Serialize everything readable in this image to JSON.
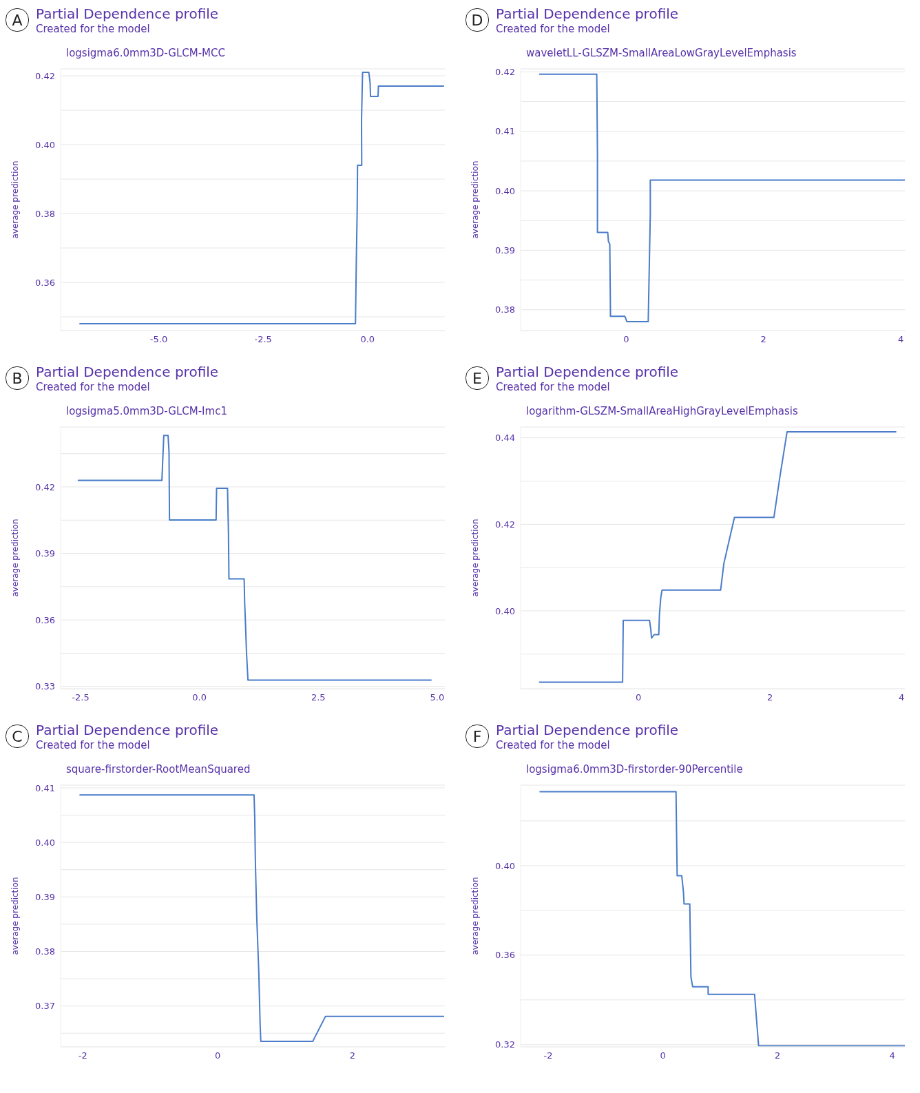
{
  "chart_data": [
    {
      "type": "line",
      "title": "Partial Dependence profile",
      "subtitle": "Created for the model",
      "ylabel": "average prediction",
      "annotations": [
        "A",
        "logsigma6.0mm3D-GLCM-MCC"
      ],
      "color": "#4a7cc9",
      "grid": "y",
      "x": [
        -6.9,
        -0.29,
        -0.28,
        -0.27,
        -0.25,
        -0.24,
        -0.14,
        -0.145,
        -0.12,
        0.03,
        0.06,
        0.07,
        0.25,
        0.26,
        1.83
      ],
      "values": [
        0.348,
        0.348,
        0.357,
        0.366,
        0.38,
        0.394,
        0.394,
        0.407,
        0.421,
        0.421,
        0.418,
        0.414,
        0.414,
        0.417,
        0.417
      ],
      "xlim": [
        -7.35,
        1.85
      ],
      "xticks": [
        {
          "value": -5,
          "label": "-5.0"
        },
        {
          "value": -2.5,
          "label": "-2.5"
        },
        {
          "value": 0,
          "label": "0.0"
        }
      ],
      "ylim": [
        0.346,
        0.422
      ],
      "yticks": [
        {
          "value": 0.35,
          "label": null
        },
        0.36,
        {
          "value": 0.37,
          "label": null
        },
        0.38,
        {
          "value": 0.39,
          "label": null
        },
        {
          "value": 0.4,
          "label": "0.40"
        },
        {
          "value": 0.41,
          "label": null
        },
        0.42
      ]
    },
    {
      "type": "line",
      "title": "Partial Dependence profile",
      "subtitle": "Created for the model",
      "ylabel": "average prediction",
      "annotations": [
        "D",
        "waveletLL-GLSZM-SmallAreaLowGrayLevelEmphasis"
      ],
      "color": "#4a7cc9",
      "grid": "y",
      "x": [
        -1.27,
        -0.43,
        -0.42,
        -0.42,
        -0.27,
        -0.26,
        -0.24,
        -0.23,
        -0.02,
        0.01,
        0.32,
        0.33,
        0.34,
        0.35,
        0.35,
        4.06
      ],
      "values": [
        0.4196,
        0.4196,
        0.4063,
        0.393,
        0.393,
        0.3915,
        0.391,
        0.3789,
        0.3789,
        0.378,
        0.378,
        0.384,
        0.39,
        0.396,
        0.4018,
        0.4018
      ],
      "xlim": [
        -1.54,
        4.06
      ],
      "xticks": [
        0,
        2,
        4
      ],
      "ylim": [
        0.3765,
        0.4205
      ],
      "yticks": [
        0.38,
        {
          "value": 0.385,
          "label": null
        },
        0.39,
        {
          "value": 0.395,
          "label": null
        },
        {
          "value": 0.4,
          "label": "0.40"
        },
        {
          "value": 0.405,
          "label": null
        },
        0.41,
        {
          "value": 0.415,
          "label": null
        },
        0.42
      ]
    },
    {
      "type": "line",
      "title": "Partial Dependence profile",
      "subtitle": "Created for the model",
      "ylabel": "average prediction",
      "annotations": [
        "B",
        "logsigma5.0mm3D-GLCM-Imc1"
      ],
      "color": "#4a7cc9",
      "grid": "y",
      "x": [
        -2.56,
        -0.79,
        -0.75,
        -0.66,
        -0.64,
        -0.63,
        0.35,
        0.36,
        0.59,
        0.61,
        0.62,
        0.94,
        0.95,
        0.97,
        0.99,
        1.02,
        4.88
      ],
      "values": [
        0.4229,
        0.4229,
        0.4432,
        0.4432,
        0.4357,
        0.4051,
        0.4051,
        0.4194,
        0.4194,
        0.399,
        0.3785,
        0.3785,
        0.3681,
        0.357,
        0.345,
        0.3329,
        0.3329
      ],
      "xlim": [
        -2.92,
        5.16
      ],
      "xticks": [
        {
          "value": -2.5,
          "label": "-2.5"
        },
        {
          "value": 0,
          "label": "0.0"
        },
        {
          "value": 2.5,
          "label": "2.5"
        },
        {
          "value": 5,
          "label": "5.0"
        }
      ],
      "ylim": [
        0.329,
        0.447
      ],
      "yticks": [
        0.33,
        {
          "value": 0.345,
          "label": null
        },
        0.36,
        {
          "value": 0.375,
          "label": null
        },
        0.39,
        {
          "value": 0.405,
          "label": null
        },
        0.42,
        {
          "value": 0.435,
          "label": null
        }
      ]
    },
    {
      "type": "line",
      "title": "Partial Dependence profile",
      "subtitle": "Created for the model",
      "ylabel": "average prediction",
      "annotations": [
        "E",
        "logarithm-GLSZM-SmallAreaHighGrayLevelEmphasis"
      ],
      "color": "#4a7cc9",
      "grid": "y",
      "x": [
        -1.51,
        -0.24,
        -0.23,
        0.17,
        0.19,
        0.2,
        0.24,
        0.31,
        0.32,
        0.34,
        0.36,
        1.25,
        1.3,
        1.46,
        2.06,
        2.15,
        2.26,
        3.92
      ],
      "values": [
        0.3835,
        0.3835,
        0.3978,
        0.3978,
        0.3955,
        0.3937,
        0.3945,
        0.3945,
        0.3991,
        0.403,
        0.4048,
        0.4048,
        0.411,
        0.4216,
        0.4216,
        0.4309,
        0.4414,
        0.4414
      ],
      "xlim": [
        -1.79,
        4.05
      ],
      "xticks": [
        0,
        2,
        4
      ],
      "ylim": [
        0.382,
        0.4425
      ],
      "yticks": [
        {
          "value": 0.39,
          "label": null
        },
        {
          "value": 0.4,
          "label": "0.40"
        },
        {
          "value": 0.41,
          "label": null
        },
        0.42,
        {
          "value": 0.43,
          "label": null
        },
        0.44
      ]
    },
    {
      "type": "line",
      "title": "Partial Dependence profile",
      "subtitle": "Created for the model",
      "ylabel": "average prediction",
      "annotations": [
        "C",
        "square-firstorder-RootMeanSquared"
      ],
      "color": "#4a7cc9",
      "grid": "y",
      "x": [
        -2.05,
        0.54,
        0.55,
        0.56,
        0.58,
        0.61,
        0.63,
        0.64,
        1.41,
        1.6,
        3.36
      ],
      "values": [
        0.4087,
        0.4087,
        0.4045,
        0.3962,
        0.3862,
        0.3762,
        0.3665,
        0.3635,
        0.3635,
        0.3681,
        0.3681
      ],
      "xlim": [
        -2.33,
        3.37
      ],
      "xticks": [
        -2,
        0,
        2
      ],
      "ylim": [
        0.3625,
        0.4105
      ],
      "yticks": [
        {
          "value": 0.365,
          "label": null
        },
        0.37,
        {
          "value": 0.375,
          "label": null
        },
        0.38,
        {
          "value": 0.385,
          "label": null
        },
        0.39,
        {
          "value": 0.395,
          "label": null
        },
        {
          "value": 0.4,
          "label": "0.40"
        },
        {
          "value": 0.405,
          "label": null
        },
        0.41
      ]
    },
    {
      "type": "line",
      "title": "Partial Dependence profile",
      "subtitle": "Created for the model",
      "ylabel": "average prediction",
      "annotations": [
        "F",
        "logsigma6.0mm3D-firstorder-90Percentile"
      ],
      "color": "#4a7cc9",
      "grid": "y",
      "x": [
        -2.15,
        0.23,
        0.24,
        0.25,
        0.33,
        0.36,
        0.37,
        0.47,
        0.48,
        0.49,
        0.52,
        0.79,
        0.79,
        1.6,
        1.62,
        1.67,
        4.22
      ],
      "values": [
        0.4331,
        0.4331,
        0.4139,
        0.3955,
        0.3955,
        0.3881,
        0.3829,
        0.3829,
        0.3663,
        0.3502,
        0.3459,
        0.3459,
        0.3425,
        0.3425,
        0.3358,
        0.3195,
        0.3195
      ],
      "xlim": [
        -2.48,
        4.22
      ],
      "xticks": [
        -2,
        0,
        2,
        4
      ],
      "ylim": [
        0.319,
        0.436
      ],
      "yticks": [
        0.32,
        {
          "value": 0.34,
          "label": null
        },
        0.36,
        {
          "value": 0.38,
          "label": null
        },
        {
          "value": 0.4,
          "label": "0.40"
        },
        {
          "value": 0.42,
          "label": null
        }
      ]
    }
  ]
}
